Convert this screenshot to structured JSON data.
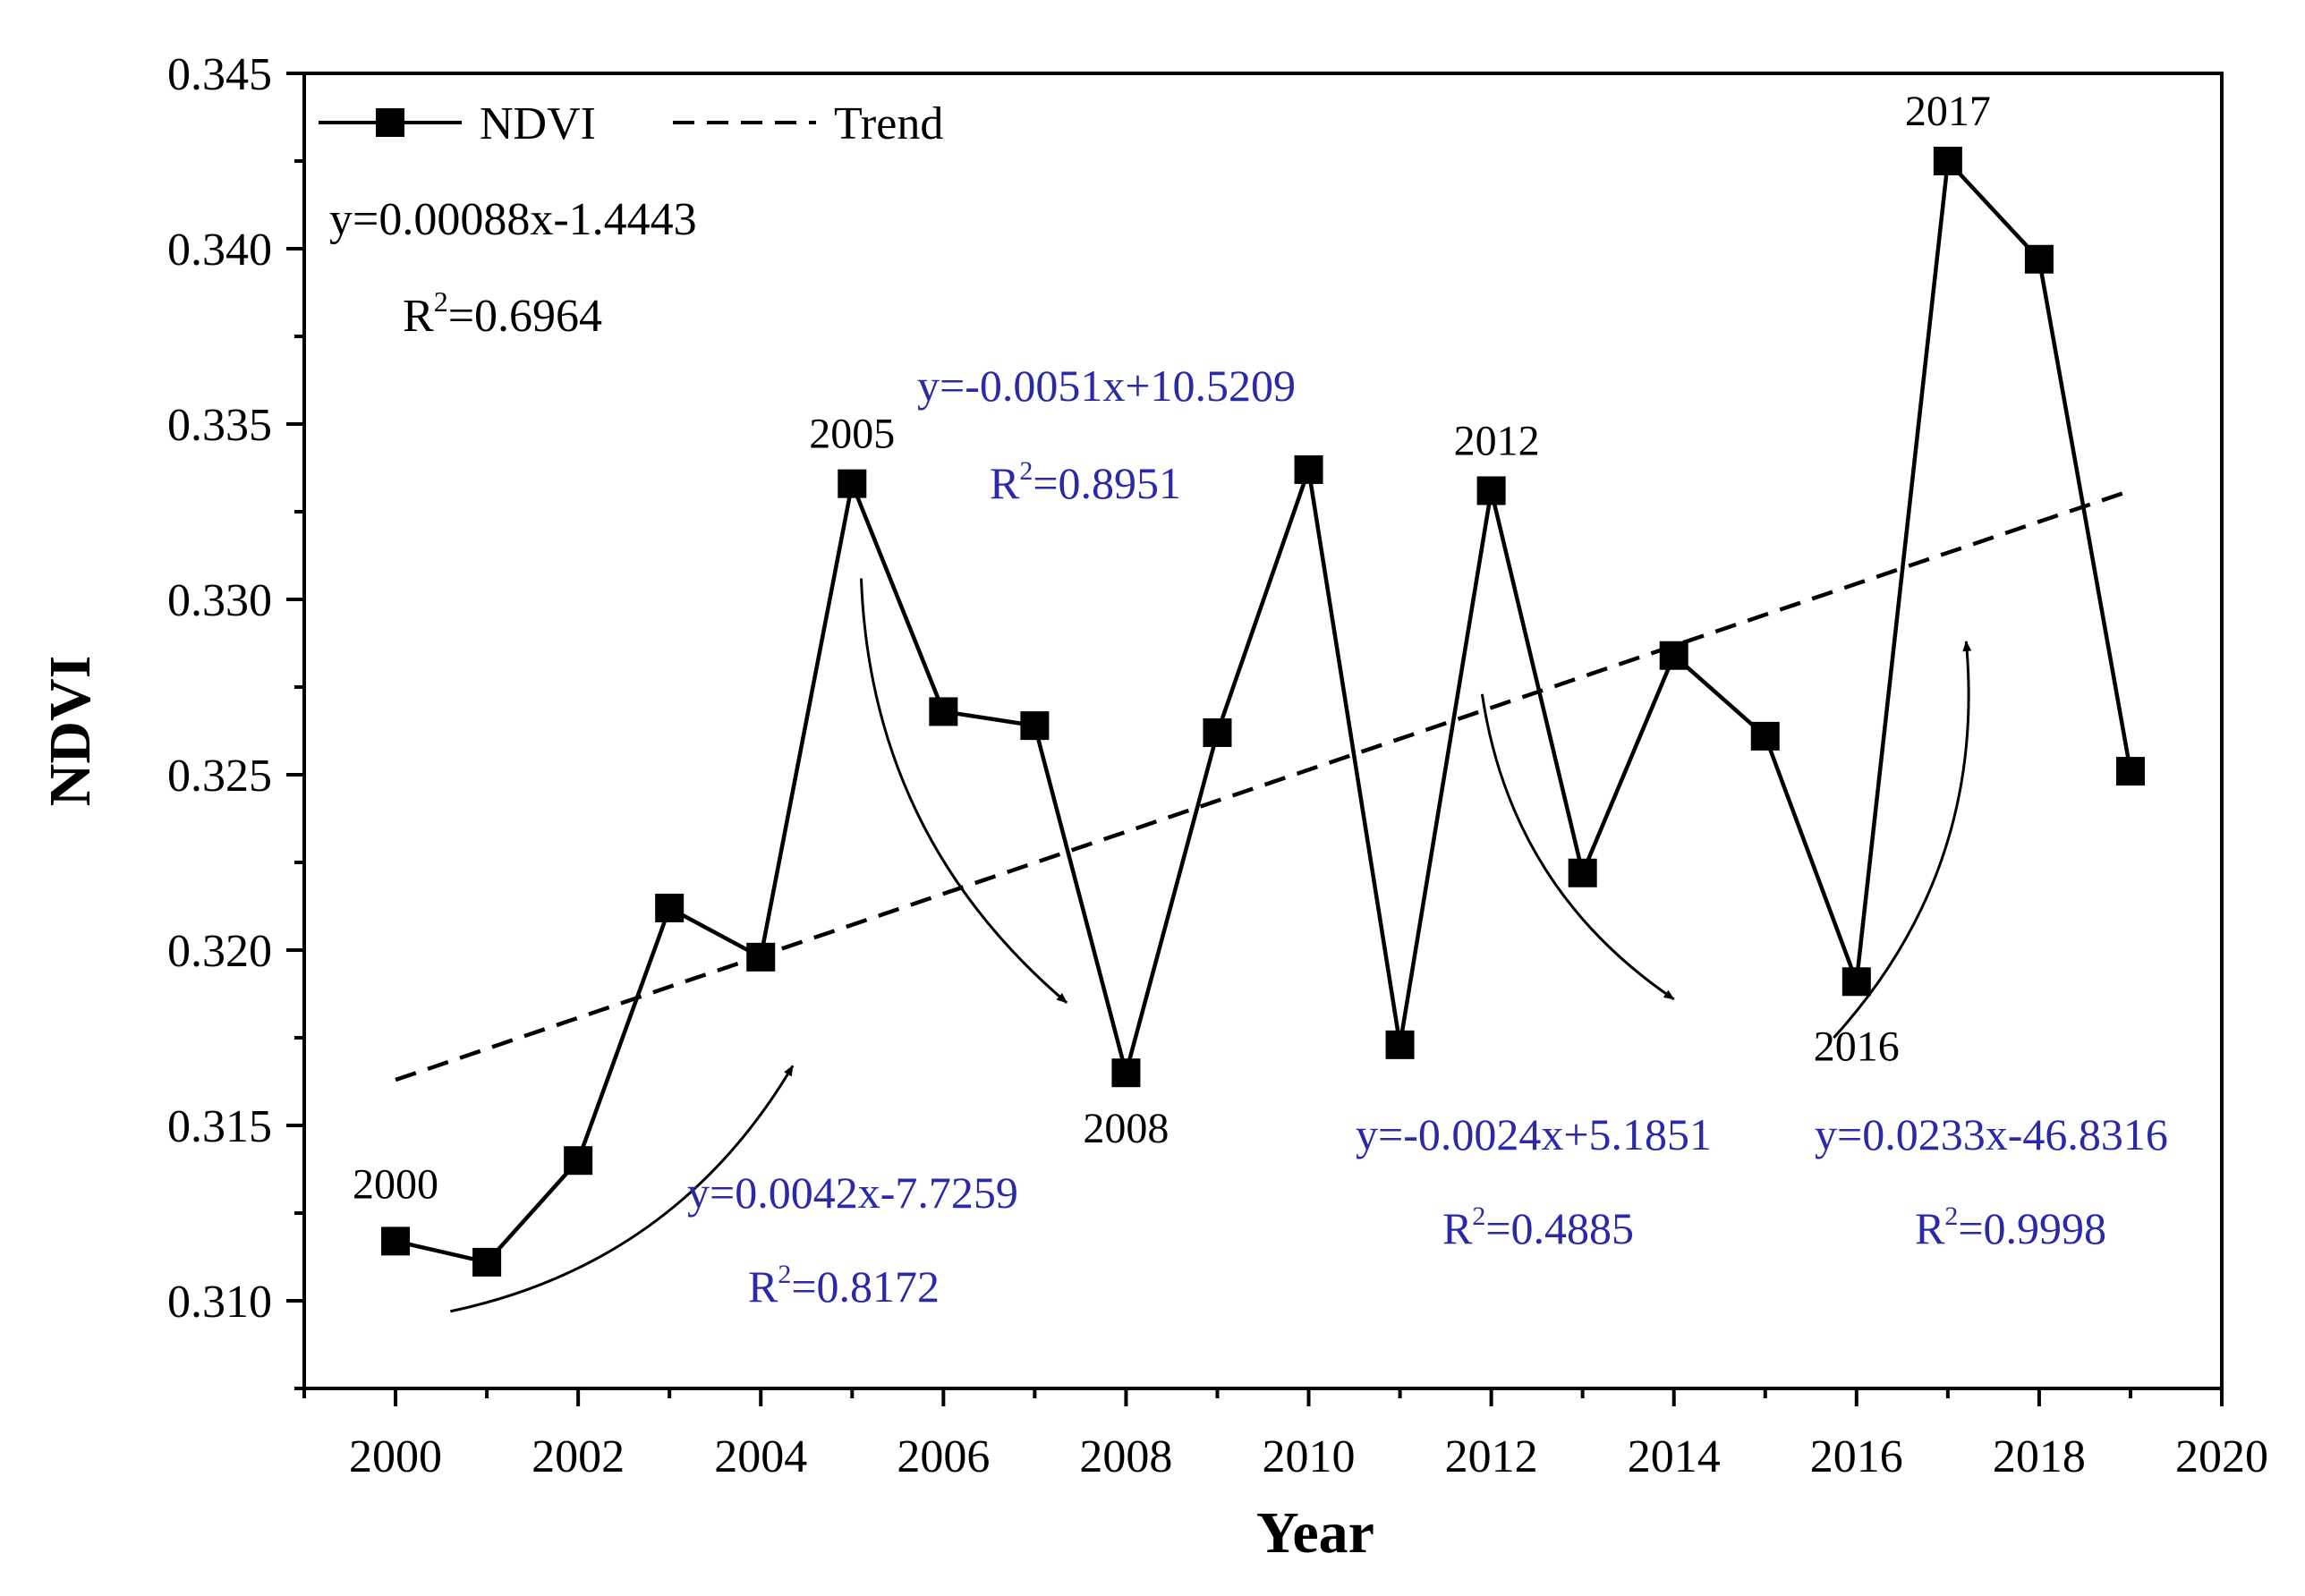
{
  "chart_data": {
    "type": "line",
    "title": "",
    "xlabel": "Year",
    "ylabel": "NDVI",
    "xlim": [
      1999,
      2020
    ],
    "ylim": [
      0.3075,
      0.345
    ],
    "xticks": [
      2000,
      2002,
      2004,
      2006,
      2008,
      2010,
      2012,
      2014,
      2016,
      2018,
      2020
    ],
    "yticks": [
      "0.310",
      "0.315",
      "0.320",
      "0.325",
      "0.330",
      "0.335",
      "0.340",
      "0.345"
    ],
    "grid": false,
    "legend_position": "top-left",
    "legend": {
      "series_label": "NDVI",
      "trend_label": "Trend"
    },
    "series": [
      {
        "name": "NDVI",
        "x": [
          2000,
          2001,
          2002,
          2003,
          2004,
          2005,
          2006,
          2007,
          2008,
          2009,
          2010,
          2011,
          2012,
          2013,
          2014,
          2015,
          2016,
          2017,
          2018,
          2019
        ],
        "y": [
          0.3117,
          0.3111,
          0.314,
          0.3212,
          0.3198,
          0.3333,
          0.3268,
          0.3264,
          0.3165,
          0.3262,
          0.3337,
          0.3173,
          0.3331,
          0.3222,
          0.3284,
          0.3261,
          0.3191,
          0.3425,
          0.3397,
          0.3251
        ]
      }
    ],
    "trend": {
      "name": "Trend",
      "x": [
        2000,
        2019
      ],
      "y": [
        0.3163,
        0.3331
      ]
    },
    "point_labels": [
      {
        "x": 2000,
        "y": 0.3117,
        "text": "2000"
      },
      {
        "x": 2005,
        "y": 0.3333,
        "text": "2005"
      },
      {
        "x": 2008,
        "y": 0.3165,
        "text": "2008"
      },
      {
        "x": 2012,
        "y": 0.3331,
        "text": "2012"
      },
      {
        "x": 2016,
        "y": 0.3191,
        "text": "2016"
      },
      {
        "x": 2017,
        "y": 0.3425,
        "text": "2017"
      }
    ],
    "overall_fit": {
      "equation": "y=0.00088x-1.4443",
      "r2_value": "=0.6964"
    },
    "segment_fits": [
      {
        "id": "2000-2005",
        "equation": "y=0.0042x-7.7259",
        "r2_value": "=0.8172",
        "arrow_from": [
          2000.6,
          0.3097
        ],
        "arrow_to": [
          2004.35,
          0.3167
        ]
      },
      {
        "id": "2005-2008",
        "equation": "y=-0.0051x+10.5209",
        "r2_value": "=0.8951",
        "arrow_from": [
          2005.1,
          0.3306
        ],
        "arrow_to": [
          2007.35,
          0.3185
        ]
      },
      {
        "id": "2012-2014",
        "equation": "y=-0.0024x+5.1851",
        "r2_value": "=0.4885",
        "arrow_from": [
          2011.9,
          0.3273
        ],
        "arrow_to": [
          2014.0,
          0.3186
        ]
      },
      {
        "id": "2016-2017",
        "equation": "y=0.0233x-46.8316",
        "r2_value": "=0.9998",
        "arrow_from": [
          2015.75,
          0.3175
        ],
        "arrow_to": [
          2017.2,
          0.3288
        ]
      }
    ],
    "r2_prefix": "R",
    "r2_superscript": "2",
    "colors": {
      "main": "#000000",
      "annotation": "#2a2aa8"
    }
  }
}
